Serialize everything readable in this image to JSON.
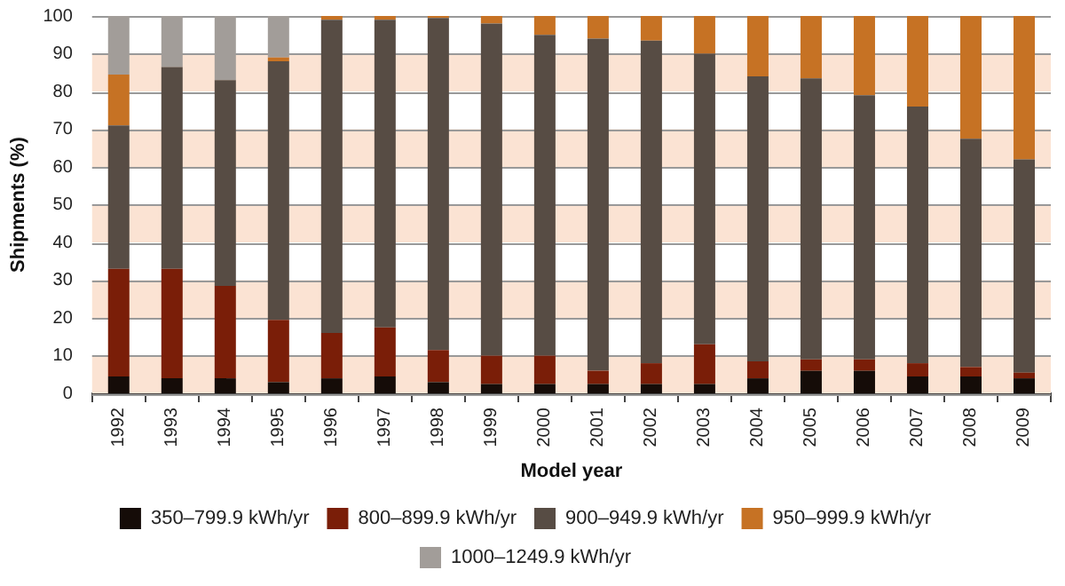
{
  "chart_data": {
    "type": "bar",
    "xlabel": "Model year",
    "ylabel": "Shipments (%)",
    "stacked": true,
    "categories": [
      "1992",
      "1993",
      "1994",
      "1995",
      "1996",
      "1997",
      "1998",
      "1999",
      "2000",
      "2001",
      "2002",
      "2003",
      "2004",
      "2005",
      "2006",
      "2007",
      "2008",
      "2009"
    ],
    "series": [
      {
        "name": "350–799.9 kWh/yr",
        "color": "#150c08",
        "values": [
          4.5,
          4,
          4,
          3,
          4,
          4.5,
          3,
          2.5,
          2.5,
          2.5,
          2.5,
          2.5,
          4,
          6,
          6,
          4.5,
          4.5,
          4
        ]
      },
      {
        "name": "800–899.9 kWh/yr",
        "color": "#7a1e08",
        "values": [
          28.5,
          29,
          24.5,
          16.5,
          12,
          13,
          8.5,
          7.5,
          7.5,
          3.5,
          5.5,
          10.5,
          4.5,
          3,
          3,
          3.5,
          2.5,
          1.5
        ]
      },
      {
        "name": "900–949.9 kWh/yr",
        "color": "#574c44",
        "values": [
          38,
          53.5,
          54.5,
          68.5,
          83,
          81.5,
          88,
          88,
          85,
          88,
          85.5,
          77,
          75.5,
          74.5,
          70,
          68,
          60.5,
          56.5
        ]
      },
      {
        "name": "950–999.9 kWh/yr",
        "color": "#c67224",
        "values": [
          13.5,
          0,
          0,
          1,
          1,
          1,
          0.5,
          2,
          5,
          6,
          6.5,
          10,
          16,
          16.5,
          21,
          24,
          32.5,
          38
        ]
      },
      {
        "name": "1000–1249.9 kWh/yr",
        "color": "#a29d99",
        "values": [
          15.5,
          13.5,
          17,
          11,
          0,
          0,
          0,
          0,
          0,
          0,
          0,
          0,
          0,
          0,
          0,
          0,
          0,
          0
        ]
      }
    ],
    "ylim": [
      0,
      100
    ],
    "yticks": [
      0,
      10,
      20,
      30,
      40,
      50,
      60,
      70,
      80,
      90,
      100
    ],
    "grid": "y",
    "legend": "bottom",
    "bands": [
      {
        "axis": "y",
        "from": 0,
        "to": 10,
        "color": "#fbe3d3"
      },
      {
        "axis": "y",
        "from": 20,
        "to": 30,
        "color": "#fbe3d3"
      },
      {
        "axis": "y",
        "from": 40,
        "to": 50,
        "color": "#fbe3d3"
      },
      {
        "axis": "y",
        "from": 60,
        "to": 70,
        "color": "#fbe3d3"
      },
      {
        "axis": "y",
        "from": 80,
        "to": 90,
        "color": "#fbe3d3"
      }
    ]
  }
}
